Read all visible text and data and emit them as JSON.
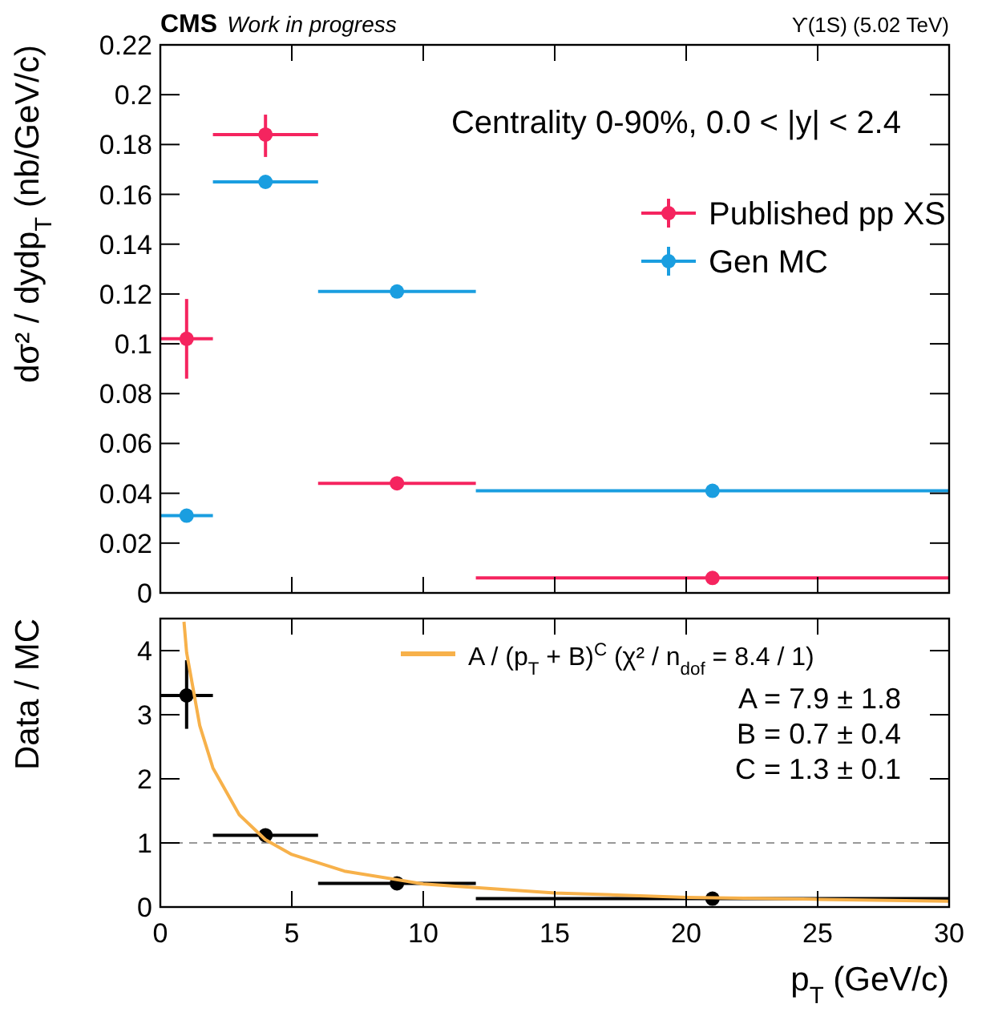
{
  "chart_data": [
    {
      "type": "scatter",
      "title": "CMS",
      "subtitle": "Work in progress",
      "ylabel": "dσ² / dydp$_{T}$ (nb/GeV/c)",
      "annotations": [
        "ϒ(1S) (5.02 TeV)",
        "Centrality 0-90%, 0.0 < |y| < 2.4"
      ],
      "xlim": [
        0,
        30
      ],
      "xticks": [
        {
          "value": 0,
          "label": null
        },
        {
          "value": 5,
          "label": null
        },
        {
          "value": 10,
          "label": null
        },
        {
          "value": 15,
          "label": null
        },
        {
          "value": 20,
          "label": null
        },
        {
          "value": 25,
          "label": null
        },
        {
          "value": 30,
          "label": null
        }
      ],
      "ylim": [
        0,
        0.22
      ],
      "yticks": [
        0,
        0.02,
        0.04,
        0.06,
        0.08,
        0.1,
        0.12,
        0.14,
        0.16,
        0.18,
        0.2,
        0.22
      ],
      "tick_labels": "y",
      "grid": false,
      "legend": "top right",
      "marker": "circle",
      "x": [
        1,
        4,
        9,
        21
      ],
      "series": [
        {
          "name": "Published pp XS",
          "color": "#f5245f",
          "values": [
            0.102,
            0.184,
            0.044,
            0.006
          ],
          "errors": [
            [
              0.086,
              0.118
            ],
            [
              0.175,
              0.192
            ],
            null,
            null
          ],
          "xerrors": [
            [
              0,
              2
            ],
            [
              2,
              6
            ],
            [
              6,
              12
            ],
            [
              12,
              30
            ]
          ]
        },
        {
          "name": "Gen MC",
          "color": "#1a9ee0",
          "values": [
            0.031,
            0.165,
            0.121,
            0.041
          ],
          "errors": [
            null,
            null,
            null,
            null
          ],
          "xerrors": [
            [
              0,
              2
            ],
            [
              2,
              6
            ],
            [
              6,
              12
            ],
            [
              12,
              30
            ]
          ]
        }
      ]
    },
    {
      "type": "scatter",
      "xlabel": "p$_{T}$ (GeV/c)",
      "ylabel": "Data / MC",
      "annotations": [
        "A = 7.9 ± 1.8",
        "B = 0.7 ± 0.4",
        "C = 1.3 ± 0.1"
      ],
      "xlim": [
        0,
        30
      ],
      "xticks": [
        0,
        5,
        10,
        15,
        20,
        25,
        30
      ],
      "ylim": [
        0,
        4.5
      ],
      "yticks": [
        0,
        1,
        2,
        3,
        4
      ],
      "grid": false,
      "legend": "top right",
      "marker": "circle",
      "ref_lines": [
        {
          "axis": "y",
          "value": 1,
          "color": "#999999",
          "line_style": "dashed"
        }
      ],
      "series": [
        {
          "color": "#000000",
          "x": [
            1,
            4,
            9,
            21
          ],
          "values": [
            3.3,
            1.12,
            0.37,
            0.13
          ],
          "errors": [
            [
              2.78,
              3.85
            ],
            null,
            null,
            null
          ],
          "xerrors": [
            [
              0,
              2
            ],
            [
              2,
              6
            ],
            [
              6,
              12
            ],
            [
              12,
              30
            ]
          ]
        },
        {
          "type": "line",
          "name": "A / (p$_{T}$ + B)$^{C}$ (χ² / n$_{dof}$ = 8.4 / 1)",
          "color": "#f7b14a",
          "marker": "none",
          "line_style": "solid",
          "x": [
            0.9,
            1,
            1.5,
            2,
            3,
            4,
            5,
            7,
            10,
            15,
            20,
            25,
            30
          ],
          "values": [
            4.45,
            3.97,
            2.83,
            2.17,
            1.44,
            1.05,
            0.82,
            0.56,
            0.36,
            0.22,
            0.15,
            0.12,
            0.09
          ]
        }
      ]
    }
  ]
}
